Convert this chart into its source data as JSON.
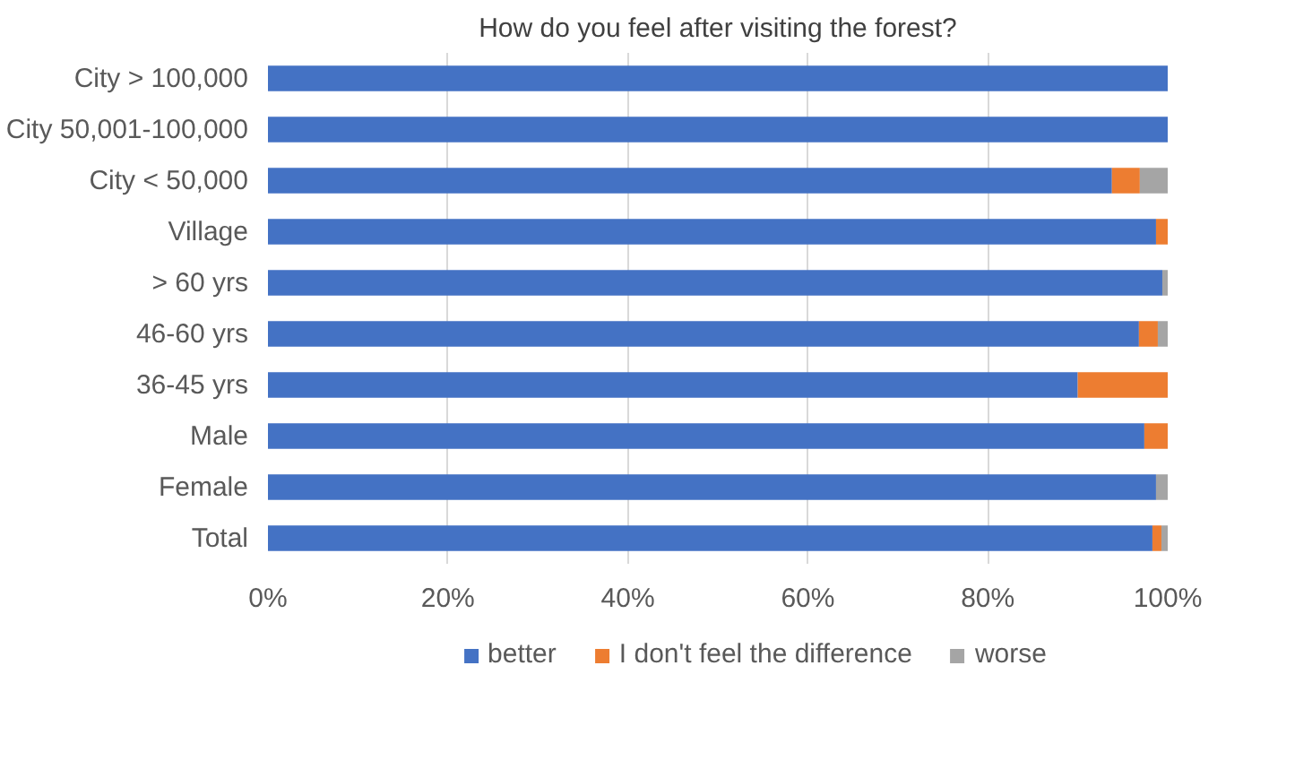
{
  "chart_data": {
    "type": "bar",
    "title": "How do you feel after visiting the forest?",
    "orientation": "horizontal",
    "stacked": true,
    "categories": [
      "City > 100,000",
      "City 50,001-100,000",
      "City < 50,000",
      "Village",
      "> 60 yrs",
      "46-60 yrs",
      "36-45 yrs",
      "Male",
      "Female",
      "Total"
    ],
    "series": [
      {
        "name": "better",
        "color": "#4472c4",
        "values": [
          100,
          100,
          93.8,
          98.7,
          99.4,
          96.8,
          90,
          97.4,
          98.7,
          98.3
        ]
      },
      {
        "name": "I don't feel the difference",
        "color": "#ed7d31",
        "values": [
          0,
          0,
          3.1,
          1.3,
          0,
          2.1,
          10,
          2.6,
          0,
          1.0
        ]
      },
      {
        "name": "worse",
        "color": "#a5a5a5",
        "values": [
          0,
          0,
          3.1,
          0,
          0.6,
          1.1,
          0,
          0,
          1.3,
          0.7
        ]
      }
    ],
    "xlim": [
      0,
      100
    ],
    "xticks": [
      {
        "value": 0,
        "label": "0%"
      },
      {
        "value": 20,
        "label": "20%"
      },
      {
        "value": 40,
        "label": "40%"
      },
      {
        "value": 60,
        "label": "60%"
      },
      {
        "value": 80,
        "label": "80%"
      },
      {
        "value": 100,
        "label": "100%"
      }
    ],
    "grid": "x",
    "legend": "bottom"
  }
}
